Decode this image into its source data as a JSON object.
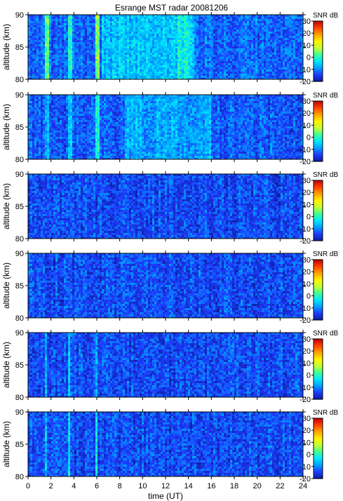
{
  "title": "Esrange MST radar 20081206",
  "chart_data": {
    "type": "heatmap",
    "title": "Esrange MST radar 20081206",
    "xlabel": "time (UT)",
    "ylabel": "altitude (km)",
    "xlim": [
      0,
      24
    ],
    "ylim": [
      80,
      90
    ],
    "x_ticks": [
      "0",
      "2",
      "4",
      "6",
      "8",
      "10",
      "12",
      "14",
      "16",
      "18",
      "20",
      "22",
      "24"
    ],
    "y_ticks": [
      "80",
      "85",
      "90"
    ],
    "colorbar": {
      "label": "SNR dB",
      "range": [
        -20,
        30
      ],
      "ticks": [
        "30",
        "20",
        "10",
        "0",
        "-10",
        "-20"
      ],
      "colors": [
        "#0a1e9c",
        "#1e3cff",
        "#00a0ff",
        "#00e8ff",
        "#40ff90",
        "#c8ff30",
        "#fff000",
        "#ffa000",
        "#ff4000",
        "#c00000"
      ]
    },
    "panels": [
      {
        "panel": 1,
        "background_snr_db": -12,
        "echo_bands": [
          {
            "t_start": 1.5,
            "t_end": 1.8,
            "snr_db": 2
          },
          {
            "t_start": 3.4,
            "t_end": 3.8,
            "snr_db": 0
          },
          {
            "t_start": 5.9,
            "t_end": 6.3,
            "snr_db": 4
          },
          {
            "t_start": 6.4,
            "t_end": 14.5,
            "snr_db": -6
          },
          {
            "t_start": 13.0,
            "t_end": 14.0,
            "snr_db": -3
          }
        ]
      },
      {
        "panel": 2,
        "background_snr_db": -13,
        "echo_bands": [
          {
            "t_start": 1.5,
            "t_end": 1.8,
            "snr_db": -8
          },
          {
            "t_start": 3.5,
            "t_end": 3.8,
            "snr_db": -5
          },
          {
            "t_start": 5.9,
            "t_end": 6.2,
            "snr_db": -2
          },
          {
            "t_start": 8.5,
            "t_end": 16.0,
            "snr_db": -8
          }
        ]
      },
      {
        "panel": 3,
        "background_snr_db": -14,
        "echo_bands": []
      },
      {
        "panel": 4,
        "background_snr_db": -14,
        "echo_bands": []
      },
      {
        "panel": 5,
        "background_snr_db": -14,
        "echo_bands": [
          {
            "t_start": 1.5,
            "t_end": 1.7,
            "snr_db": -5
          },
          {
            "t_start": 3.5,
            "t_end": 3.7,
            "snr_db": -5
          },
          {
            "t_start": 5.9,
            "t_end": 6.1,
            "snr_db": -7
          }
        ]
      },
      {
        "panel": 6,
        "background_snr_db": -14,
        "echo_bands": [
          {
            "t_start": 1.5,
            "t_end": 1.7,
            "snr_db": -5
          },
          {
            "t_start": 3.5,
            "t_end": 3.7,
            "snr_db": -5
          },
          {
            "t_start": 5.9,
            "t_end": 6.1,
            "snr_db": -2
          }
        ]
      }
    ]
  }
}
